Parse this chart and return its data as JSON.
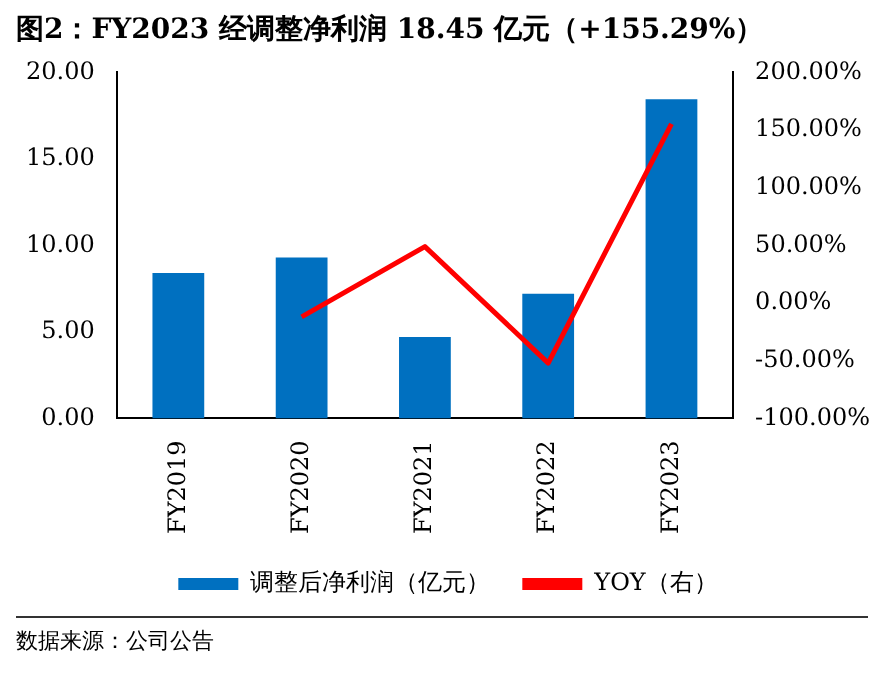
{
  "chart_data": {
    "type": "bar",
    "title": "图2：FY2023 经调整净利润 18.45 亿元（+155.29%）",
    "categories": [
      "FY2019",
      "FY2020",
      "FY2021",
      "FY2022",
      "FY2023"
    ],
    "series": [
      {
        "name": "调整后净利润（亿元）",
        "color": "#0070c0",
        "values": [
          8.4,
          9.3,
          4.7,
          7.2,
          18.45
        ]
      },
      {
        "name": "YOY（右）",
        "type": "line",
        "axis": "y2",
        "color": "#ff0000",
        "values": [
          null,
          -12,
          49,
          -52,
          155.29
        ]
      }
    ],
    "ylim": [
      0,
      20
    ],
    "yticks": [
      {
        "value": 0,
        "label": "0.00"
      },
      {
        "value": 5,
        "label": "5.00"
      },
      {
        "value": 10,
        "label": "10.00"
      },
      {
        "value": 15,
        "label": "15.00"
      },
      {
        "value": 20,
        "label": "20.00"
      }
    ],
    "y2lim": [
      -100,
      200
    ],
    "y2ticks": [
      {
        "value": -100,
        "label": "-100.00%"
      },
      {
        "value": -50,
        "label": "-50.00%"
      },
      {
        "value": 0,
        "label": "0.00%"
      },
      {
        "value": 50,
        "label": "50.00%"
      },
      {
        "value": 100,
        "label": "100.00%"
      },
      {
        "value": 150,
        "label": "150.00%"
      },
      {
        "value": 200,
        "label": "200.00%"
      }
    ],
    "grid": false,
    "legend": "bottom",
    "marker": "none",
    "annotations": [
      "数据来源：公司公告"
    ]
  }
}
